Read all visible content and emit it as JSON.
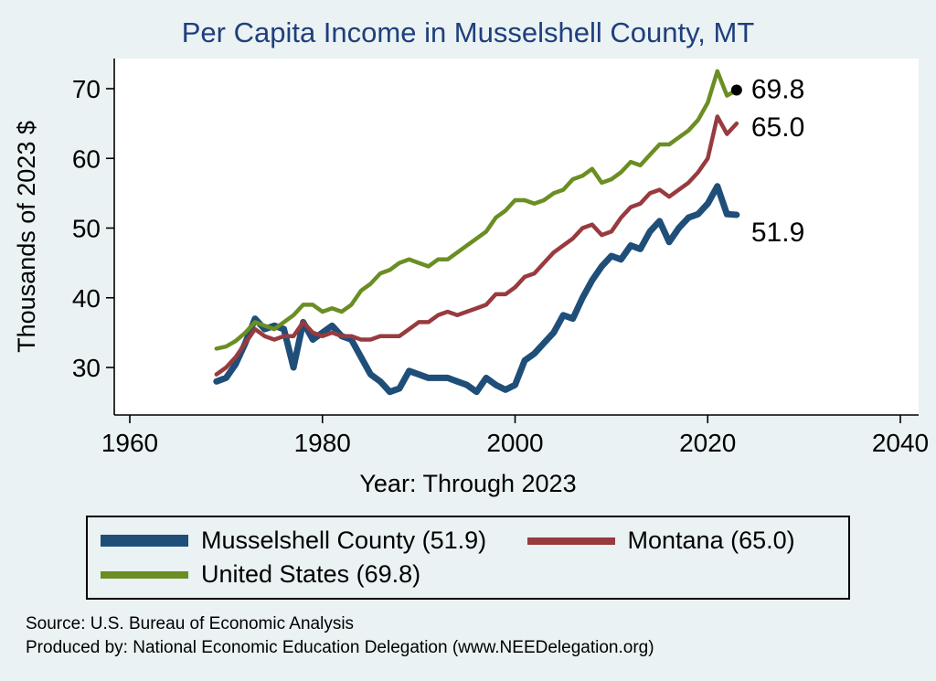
{
  "chart_data": {
    "type": "line",
    "title": "Per Capita Income in Musselshell County, MT",
    "xlabel": "Year: Through 2023",
    "ylabel": "Thousands of 2023 $",
    "xlim": [
      1960,
      2040
    ],
    "ylim": [
      26,
      73
    ],
    "xticks": [
      1960,
      1980,
      2000,
      2020,
      2040
    ],
    "yticks": [
      30,
      40,
      50,
      60,
      70
    ],
    "grid": false,
    "legend_position": "bottom",
    "x": [
      1969,
      1970,
      1971,
      1972,
      1973,
      1974,
      1975,
      1976,
      1977,
      1978,
      1979,
      1980,
      1981,
      1982,
      1983,
      1984,
      1985,
      1986,
      1987,
      1988,
      1989,
      1990,
      1991,
      1992,
      1993,
      1994,
      1995,
      1996,
      1997,
      1998,
      1999,
      2000,
      2001,
      2002,
      2003,
      2004,
      2005,
      2006,
      2007,
      2008,
      2009,
      2010,
      2011,
      2012,
      2013,
      2014,
      2015,
      2016,
      2017,
      2018,
      2019,
      2020,
      2021,
      2022,
      2023
    ],
    "series": [
      {
        "id": "musselshell-county",
        "name": "Musselshell County (51.9)",
        "color": "#1f4e79",
        "width": 7,
        "end_label": "51.9",
        "dot_at_end": false,
        "values": [
          28.0,
          28.5,
          30.5,
          33.5,
          37.0,
          35.5,
          36.0,
          35.5,
          30.0,
          36.5,
          34.0,
          35.0,
          36.0,
          34.5,
          34.0,
          31.5,
          29.0,
          28.0,
          26.5,
          27.0,
          29.5,
          29.0,
          28.5,
          28.5,
          28.5,
          28.0,
          27.5,
          26.5,
          28.5,
          27.5,
          26.8,
          27.5,
          31.0,
          32.0,
          33.5,
          35.0,
          37.5,
          37.0,
          40.0,
          42.5,
          44.5,
          46.0,
          45.5,
          47.5,
          47.0,
          49.5,
          51.0,
          48.0,
          50.0,
          51.5,
          52.0,
          53.5,
          56.0,
          52.0,
          51.9
        ]
      },
      {
        "id": "montana",
        "name": "Montana (65.0)",
        "color": "#983b3e",
        "width": 4.5,
        "end_label": "65.0",
        "dot_at_end": false,
        "values": [
          29.0,
          30.0,
          31.5,
          33.5,
          35.5,
          34.5,
          34.0,
          34.5,
          34.5,
          36.5,
          35.0,
          34.5,
          35.0,
          34.5,
          34.5,
          34.0,
          34.0,
          34.5,
          34.5,
          34.5,
          35.5,
          36.5,
          36.5,
          37.5,
          38.0,
          37.5,
          38.0,
          38.5,
          39.0,
          40.5,
          40.5,
          41.5,
          43.0,
          43.5,
          45.0,
          46.5,
          47.5,
          48.5,
          50.0,
          50.5,
          49.0,
          49.5,
          51.5,
          53.0,
          53.5,
          55.0,
          55.5,
          54.5,
          55.5,
          56.5,
          58.0,
          60.0,
          66.0,
          63.5,
          65.0
        ]
      },
      {
        "id": "united-states",
        "name": "United States (69.8)",
        "color": "#6b8e23",
        "width": 4.5,
        "end_label": "69.8",
        "dot_at_end": true,
        "values": [
          32.7,
          33.0,
          33.8,
          35.0,
          36.5,
          36.0,
          35.5,
          36.5,
          37.5,
          39.0,
          39.0,
          38.0,
          38.5,
          38.0,
          39.0,
          41.0,
          42.0,
          43.5,
          44.0,
          45.0,
          45.5,
          45.0,
          44.5,
          45.5,
          45.5,
          46.5,
          47.5,
          48.5,
          49.5,
          51.5,
          52.5,
          54.0,
          54.0,
          53.5,
          54.0,
          55.0,
          55.5,
          57.0,
          57.5,
          58.5,
          56.5,
          57.0,
          58.0,
          59.5,
          59.0,
          60.5,
          62.0,
          62.0,
          63.0,
          64.0,
          65.5,
          68.0,
          72.5,
          69.0,
          69.8
        ]
      }
    ]
  },
  "footer": {
    "source": "Source: U.S. Bureau of Economic Analysis",
    "produced_by": "Produced by: National Economic Education Delegation (www.NEEDelegation.org)"
  },
  "colors": {
    "background": "#eaf2f3",
    "plot_background": "#ffffff",
    "title": "#1f3f7c",
    "axis": "#000000"
  }
}
